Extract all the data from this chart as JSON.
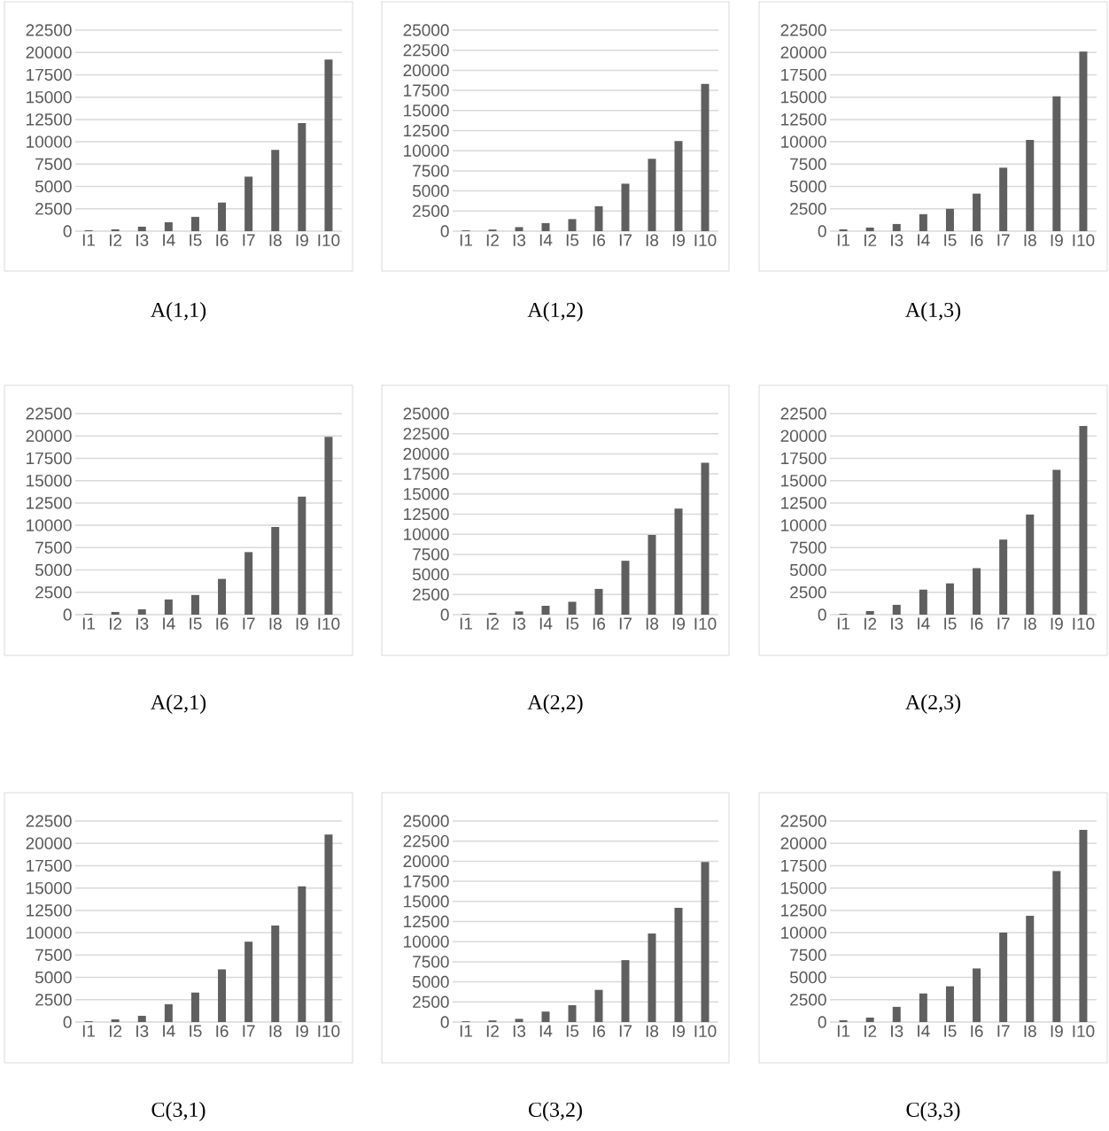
{
  "chart_data": [
    {
      "type": "bar",
      "title": "A(1,1)",
      "categories": [
        "I1",
        "I2",
        "I3",
        "I4",
        "I5",
        "I6",
        "I7",
        "I8",
        "I9",
        "I10"
      ],
      "values": [
        100,
        200,
        500,
        1000,
        1600,
        3200,
        6100,
        9100,
        12100,
        19200
      ],
      "color": "#5f5f5f",
      "ylim": [
        0,
        22500
      ],
      "yticks": [
        0,
        2500,
        5000,
        7500,
        10000,
        12500,
        15000,
        17500,
        20000,
        22500
      ],
      "grid": "y"
    },
    {
      "type": "bar",
      "title": "A(1,2)",
      "categories": [
        "I1",
        "I2",
        "I3",
        "I4",
        "I5",
        "I6",
        "I7",
        "I8",
        "I9",
        "I10"
      ],
      "values": [
        100,
        200,
        500,
        1000,
        1500,
        3100,
        5900,
        9000,
        11200,
        18300
      ],
      "color": "#5f5f5f",
      "ylim": [
        0,
        25000
      ],
      "yticks": [
        0,
        2500,
        5000,
        7500,
        10000,
        12500,
        15000,
        17500,
        20000,
        22500,
        25000
      ],
      "grid": "y"
    },
    {
      "type": "bar",
      "title": "A(1,3)",
      "categories": [
        "I1",
        "I2",
        "I3",
        "I4",
        "I5",
        "I6",
        "I7",
        "I8",
        "I9",
        "I10"
      ],
      "values": [
        200,
        400,
        800,
        1900,
        2500,
        4200,
        7100,
        10200,
        15100,
        20100
      ],
      "color": "#5f5f5f",
      "ylim": [
        0,
        22500
      ],
      "yticks": [
        0,
        2500,
        5000,
        7500,
        10000,
        12500,
        15000,
        17500,
        20000,
        22500
      ],
      "grid": "y"
    },
    {
      "type": "bar",
      "title": "A(2,1)",
      "categories": [
        "I1",
        "I2",
        "I3",
        "I4",
        "I5",
        "I6",
        "I7",
        "I8",
        "I9",
        "I10"
      ],
      "values": [
        100,
        300,
        600,
        1700,
        2200,
        4000,
        7000,
        9800,
        13200,
        19900
      ],
      "color": "#5f5f5f",
      "ylim": [
        0,
        22500
      ],
      "yticks": [
        0,
        2500,
        5000,
        7500,
        10000,
        12500,
        15000,
        17500,
        20000,
        22500
      ],
      "grid": "y"
    },
    {
      "type": "bar",
      "title": "A(2,2)",
      "categories": [
        "I1",
        "I2",
        "I3",
        "I4",
        "I5",
        "I6",
        "I7",
        "I8",
        "I9",
        "I10"
      ],
      "values": [
        100,
        200,
        400,
        1100,
        1600,
        3200,
        6700,
        9900,
        13200,
        18900
      ],
      "color": "#5f5f5f",
      "ylim": [
        0,
        25000
      ],
      "yticks": [
        0,
        2500,
        5000,
        7500,
        10000,
        12500,
        15000,
        17500,
        20000,
        22500,
        25000
      ],
      "grid": "y"
    },
    {
      "type": "bar",
      "title": "A(2,3)",
      "categories": [
        "I1",
        "I2",
        "I3",
        "I4",
        "I5",
        "I6",
        "I7",
        "I8",
        "I9",
        "I10"
      ],
      "values": [
        100,
        400,
        1100,
        2800,
        3500,
        5200,
        8400,
        11200,
        16200,
        21100
      ],
      "color": "#5f5f5f",
      "ylim": [
        0,
        22500
      ],
      "yticks": [
        0,
        2500,
        5000,
        7500,
        10000,
        12500,
        15000,
        17500,
        20000,
        22500
      ],
      "grid": "y"
    },
    {
      "type": "bar",
      "title": "C(3,1)",
      "categories": [
        "I1",
        "I2",
        "I3",
        "I4",
        "I5",
        "I6",
        "I7",
        "I8",
        "I9",
        "I10"
      ],
      "values": [
        100,
        300,
        700,
        2000,
        3300,
        5900,
        9000,
        10800,
        15200,
        21000
      ],
      "color": "#5f5f5f",
      "ylim": [
        0,
        22500
      ],
      "yticks": [
        0,
        2500,
        5000,
        7500,
        10000,
        12500,
        15000,
        17500,
        20000,
        22500
      ],
      "grid": "y"
    },
    {
      "type": "bar",
      "title": "C(3,2)",
      "categories": [
        "I1",
        "I2",
        "I3",
        "I4",
        "I5",
        "I6",
        "I7",
        "I8",
        "I9",
        "I10"
      ],
      "values": [
        100,
        200,
        400,
        1300,
        2100,
        4000,
        7700,
        11000,
        14200,
        19900
      ],
      "color": "#5f5f5f",
      "ylim": [
        0,
        25000
      ],
      "yticks": [
        0,
        2500,
        5000,
        7500,
        10000,
        12500,
        15000,
        17500,
        20000,
        22500,
        25000
      ],
      "grid": "y"
    },
    {
      "type": "bar",
      "title": "C(3,3)",
      "categories": [
        "I1",
        "I2",
        "I3",
        "I4",
        "I5",
        "I6",
        "I7",
        "I8",
        "I9",
        "I10"
      ],
      "values": [
        200,
        500,
        1700,
        3200,
        4000,
        6000,
        10000,
        11900,
        16900,
        21500
      ],
      "color": "#5f5f5f",
      "ylim": [
        0,
        22500
      ],
      "yticks": [
        0,
        2500,
        5000,
        7500,
        10000,
        12500,
        15000,
        17500,
        20000,
        22500
      ],
      "grid": "y"
    }
  ]
}
